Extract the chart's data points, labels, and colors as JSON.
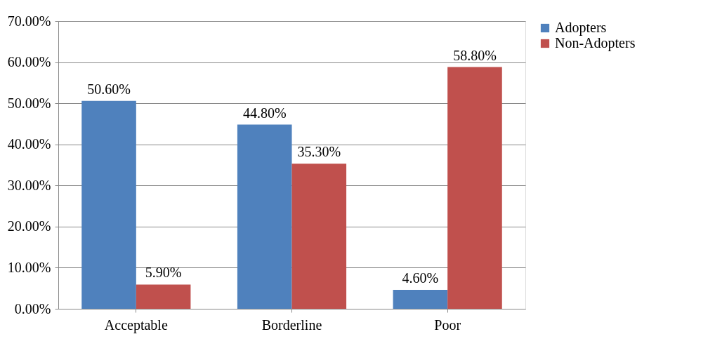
{
  "chart_data": {
    "type": "bar",
    "categories": [
      "Acceptable",
      "Borderline",
      "Poor"
    ],
    "series": [
      {
        "name": "Adopters",
        "color": "#4f81bd",
        "values": [
          50.6,
          44.8,
          4.6
        ],
        "value_labels": [
          "50.60%",
          "44.80%",
          "4.60%"
        ]
      },
      {
        "name": "Non-Adopters",
        "color": "#c0504d",
        "values": [
          5.9,
          35.3,
          58.8
        ],
        "value_labels": [
          "5.90%",
          "35.30%",
          "58.80%"
        ]
      }
    ],
    "ylim": [
      0,
      70
    ],
    "yticks": [
      {
        "value": 0,
        "label": "0.00%"
      },
      {
        "value": 10,
        "label": "10.00%"
      },
      {
        "value": 20,
        "label": "20.00%"
      },
      {
        "value": 30,
        "label": "30.00%"
      },
      {
        "value": 40,
        "label": "40.00%"
      },
      {
        "value": 50,
        "label": "50.00%"
      },
      {
        "value": 60,
        "label": "60.00%"
      },
      {
        "value": 70,
        "label": "70.00%"
      }
    ],
    "grid": "y",
    "legend": "right"
  }
}
